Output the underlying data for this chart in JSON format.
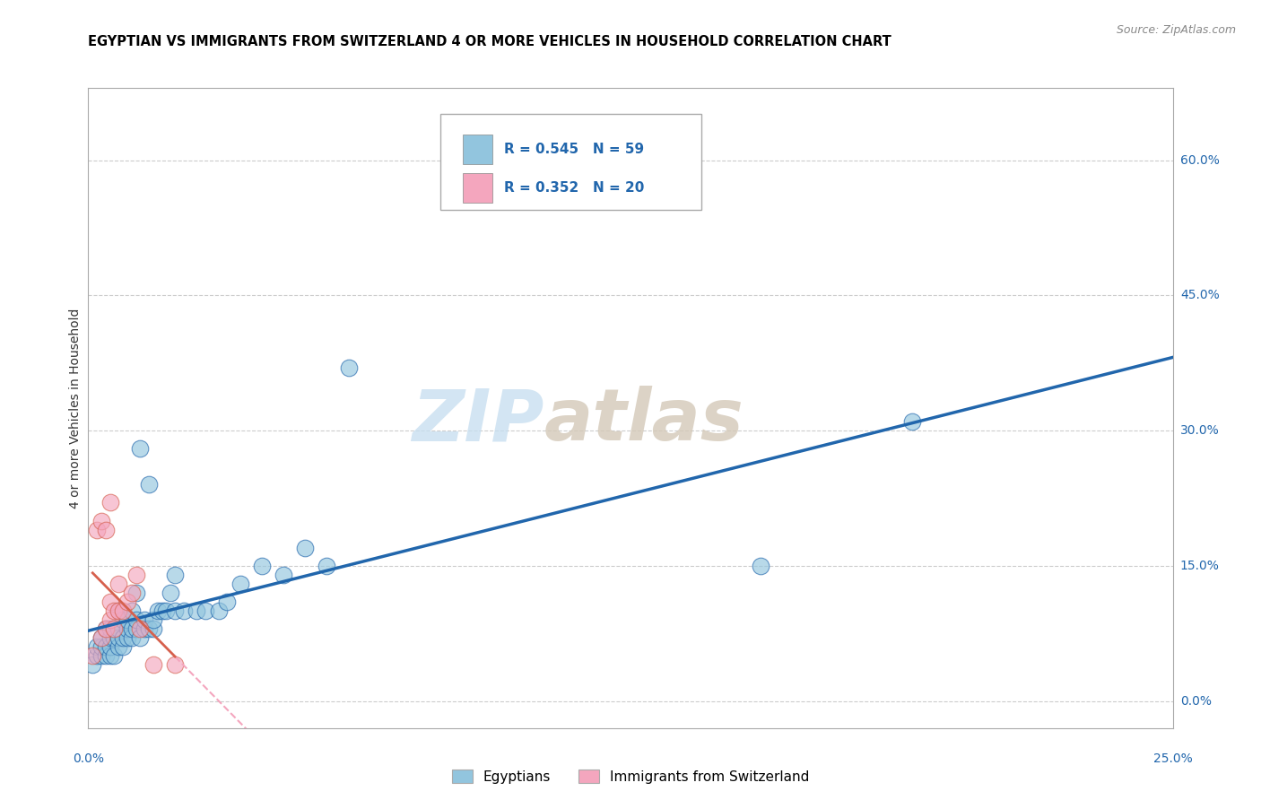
{
  "title": "EGYPTIAN VS IMMIGRANTS FROM SWITZERLAND 4 OR MORE VEHICLES IN HOUSEHOLD CORRELATION CHART",
  "source": "Source: ZipAtlas.com",
  "ylabel": "4 or more Vehicles in Household",
  "xlim": [
    0.0,
    0.25
  ],
  "ylim": [
    0.0,
    0.65
  ],
  "y_ticks": [
    0.0,
    0.15,
    0.3,
    0.45,
    0.6
  ],
  "y_tick_labels": [
    "0.0%",
    "15.0%",
    "30.0%",
    "45.0%",
    "60.0%"
  ],
  "x_tick_labels_left": "0.0%",
  "x_tick_labels_right": "25.0%",
  "legend_label1": "Egyptians",
  "legend_label2": "Immigrants from Switzerland",
  "R1": 0.545,
  "N1": 59,
  "R2": 0.352,
  "N2": 20,
  "color_blue": "#92c5de",
  "color_pink": "#f4a6be",
  "color_blue_line": "#2166ac",
  "color_pink_line": "#d6604d",
  "color_dashed": "#f4a6be",
  "watermark_zip_color": "#c8dff0",
  "watermark_atlas_color": "#d4c9b8",
  "egyptians_x": [
    0.001,
    0.002,
    0.002,
    0.003,
    0.003,
    0.003,
    0.004,
    0.004,
    0.004,
    0.005,
    0.005,
    0.005,
    0.005,
    0.006,
    0.006,
    0.006,
    0.007,
    0.007,
    0.007,
    0.007,
    0.008,
    0.008,
    0.008,
    0.009,
    0.009,
    0.009,
    0.01,
    0.01,
    0.01,
    0.011,
    0.011,
    0.011,
    0.012,
    0.012,
    0.013,
    0.013,
    0.014,
    0.014,
    0.015,
    0.015,
    0.016,
    0.017,
    0.018,
    0.019,
    0.02,
    0.02,
    0.022,
    0.025,
    0.027,
    0.03,
    0.032,
    0.035,
    0.04,
    0.045,
    0.05,
    0.055,
    0.06,
    0.155,
    0.19
  ],
  "egyptians_y": [
    0.04,
    0.05,
    0.06,
    0.05,
    0.06,
    0.07,
    0.05,
    0.06,
    0.08,
    0.05,
    0.06,
    0.07,
    0.08,
    0.05,
    0.07,
    0.08,
    0.06,
    0.07,
    0.08,
    0.1,
    0.06,
    0.07,
    0.09,
    0.07,
    0.08,
    0.09,
    0.07,
    0.08,
    0.1,
    0.08,
    0.09,
    0.12,
    0.07,
    0.28,
    0.08,
    0.09,
    0.08,
    0.24,
    0.08,
    0.09,
    0.1,
    0.1,
    0.1,
    0.12,
    0.1,
    0.14,
    0.1,
    0.1,
    0.1,
    0.1,
    0.11,
    0.13,
    0.15,
    0.14,
    0.17,
    0.15,
    0.37,
    0.15,
    0.31
  ],
  "swiss_x": [
    0.001,
    0.002,
    0.003,
    0.003,
    0.004,
    0.004,
    0.005,
    0.005,
    0.005,
    0.006,
    0.006,
    0.007,
    0.007,
    0.008,
    0.009,
    0.01,
    0.011,
    0.012,
    0.015,
    0.02
  ],
  "swiss_y": [
    0.05,
    0.19,
    0.07,
    0.2,
    0.08,
    0.19,
    0.09,
    0.11,
    0.22,
    0.08,
    0.1,
    0.1,
    0.13,
    0.1,
    0.11,
    0.12,
    0.14,
    0.08,
    0.04,
    0.04
  ]
}
